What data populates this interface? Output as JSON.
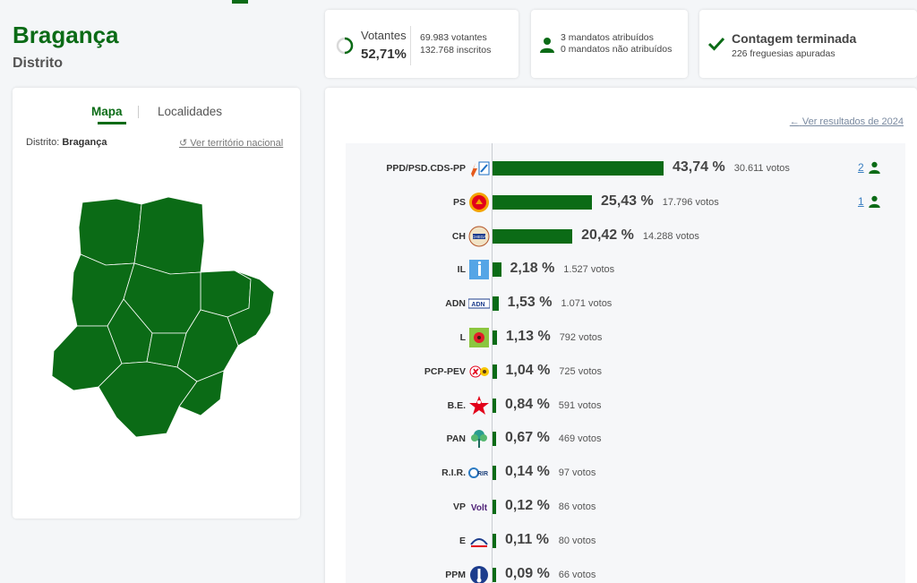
{
  "header": {
    "title": "Bragança",
    "subtitle": "Distrito"
  },
  "stats": {
    "votantes_label": "Votantes",
    "votantes_pct": "52,71%",
    "votantes_pct_value": 52.71,
    "votantes_count": "69.983 votantes",
    "inscritos": "132.768 inscritos",
    "mandatos_atribuidos": "3 mandatos atribuídos",
    "mandatos_nao": "0 mandatos não atribuídos",
    "contagem_title": "Contagem terminada",
    "freguesias": "226 freguesias apuradas"
  },
  "map_card": {
    "tab_mapa": "Mapa",
    "tab_localidades": "Localidades",
    "distrito_prefix": "Distrito:",
    "distrito_name": "Bragança",
    "nacional_link": "Ver território nacional"
  },
  "results": {
    "prev_link": "Ver resultados de 2024",
    "colors": {
      "bar": "#0b6b16",
      "accent": "#0b6b16",
      "link": "#3a7fc1"
    },
    "parties": [
      {
        "name": "PPD/PSD.CDS-PP",
        "pct_value": 43.74,
        "pct": "43,74 %",
        "votes": "30.611 votos",
        "seats": "2",
        "logo": "psd-cds"
      },
      {
        "name": "PS",
        "pct_value": 25.43,
        "pct": "25,43 %",
        "votes": "17.796 votos",
        "seats": "1",
        "logo": "ps"
      },
      {
        "name": "CH",
        "pct_value": 20.42,
        "pct": "20,42 %",
        "votes": "14.288 votos",
        "seats": "",
        "logo": "chega"
      },
      {
        "name": "IL",
        "pct_value": 2.18,
        "pct": "2,18 %",
        "votes": "1.527 votos",
        "seats": "",
        "logo": "il"
      },
      {
        "name": "ADN",
        "pct_value": 1.53,
        "pct": "1,53 %",
        "votes": "1.071 votos",
        "seats": "",
        "logo": "adn"
      },
      {
        "name": "L",
        "pct_value": 1.13,
        "pct": "1,13 %",
        "votes": "792 votos",
        "seats": "",
        "logo": "livre"
      },
      {
        "name": "PCP-PEV",
        "pct_value": 1.04,
        "pct": "1,04 %",
        "votes": "725 votos",
        "seats": "",
        "logo": "cdu"
      },
      {
        "name": "B.E.",
        "pct_value": 0.84,
        "pct": "0,84 %",
        "votes": "591 votos",
        "seats": "",
        "logo": "be"
      },
      {
        "name": "PAN",
        "pct_value": 0.67,
        "pct": "0,67 %",
        "votes": "469 votos",
        "seats": "",
        "logo": "pan"
      },
      {
        "name": "R.I.R.",
        "pct_value": 0.14,
        "pct": "0,14 %",
        "votes": "97 votos",
        "seats": "",
        "logo": "rir"
      },
      {
        "name": "VP",
        "pct_value": 0.12,
        "pct": "0,12 %",
        "votes": "86 votos",
        "seats": "",
        "logo": "volt"
      },
      {
        "name": "E",
        "pct_value": 0.11,
        "pct": "0,11 %",
        "votes": "80 votos",
        "seats": "",
        "logo": "ergue-te"
      },
      {
        "name": "PPM",
        "pct_value": 0.09,
        "pct": "0,09 %",
        "votes": "66 votos",
        "seats": "",
        "logo": "ppm"
      }
    ]
  }
}
